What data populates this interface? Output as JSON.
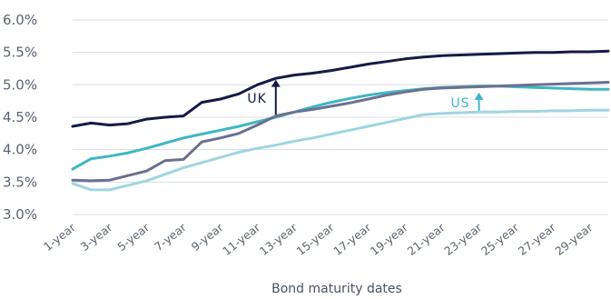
{
  "chart_data": {
    "type": "line",
    "xlabel": "Bond maturity dates",
    "ylabel": "",
    "title": "",
    "x_tick_labels": [
      "1-year",
      "3-year",
      "5-year",
      "7-year",
      "9-year",
      "11-year",
      "13-year",
      "15-year",
      "17-year",
      "19-year",
      "21-year",
      "23-year",
      "25-year",
      "27-year",
      "29-year"
    ],
    "y_tick_labels": [
      "3.0%",
      "3.5%",
      "4.0%",
      "4.5%",
      "5.0%",
      "5.5%",
      "6.0%"
    ],
    "ylim": [
      3.0,
      6.0
    ],
    "xlim": [
      1,
      30
    ],
    "grid": "horizontal",
    "series": [
      {
        "color": "#141b45",
        "x": [
          1,
          2,
          3,
          4,
          5,
          6,
          7,
          8,
          9,
          10,
          11,
          12,
          13,
          14,
          15,
          16,
          17,
          18,
          19,
          20,
          21,
          22,
          23,
          24,
          25,
          26,
          27,
          28,
          29,
          30
        ],
        "values": [
          4.36,
          4.41,
          4.38,
          4.4,
          4.47,
          4.5,
          4.52,
          4.73,
          4.78,
          4.86,
          5.0,
          5.1,
          5.15,
          5.18,
          5.22,
          5.27,
          5.32,
          5.36,
          5.4,
          5.43,
          5.45,
          5.46,
          5.47,
          5.48,
          5.49,
          5.5,
          5.5,
          5.51,
          5.51,
          5.52
        ]
      },
      {
        "color": "#3fb6c3",
        "x": [
          1,
          2,
          3,
          4,
          5,
          6,
          7,
          8,
          9,
          10,
          11,
          12,
          13,
          14,
          15,
          16,
          17,
          18,
          19,
          20,
          21,
          22,
          23,
          24,
          25,
          26,
          27,
          28,
          29,
          30
        ],
        "values": [
          3.7,
          3.86,
          3.9,
          3.95,
          4.02,
          4.1,
          4.18,
          4.24,
          4.3,
          4.36,
          4.43,
          4.5,
          4.58,
          4.66,
          4.73,
          4.79,
          4.84,
          4.88,
          4.91,
          4.94,
          4.96,
          4.97,
          4.98,
          4.98,
          4.97,
          4.96,
          4.95,
          4.94,
          4.93,
          4.93
        ]
      },
      {
        "color": "#6b7090",
        "x": [
          1,
          2,
          3,
          4,
          5,
          6,
          7,
          8,
          9,
          10,
          11,
          12,
          13,
          14,
          15,
          16,
          17,
          18,
          19,
          20,
          21,
          22,
          23,
          24,
          25,
          26,
          27,
          28,
          29,
          30
        ],
        "values": [
          3.53,
          3.52,
          3.53,
          3.6,
          3.67,
          3.83,
          3.85,
          4.12,
          4.18,
          4.25,
          4.38,
          4.52,
          4.58,
          4.62,
          4.67,
          4.72,
          4.78,
          4.84,
          4.89,
          4.93,
          4.95,
          4.96,
          4.97,
          4.98,
          4.99,
          5.0,
          5.01,
          5.02,
          5.03,
          5.04
        ]
      },
      {
        "color": "#9fd5e0",
        "x": [
          1,
          2,
          3,
          4,
          5,
          6,
          7,
          8,
          9,
          10,
          11,
          12,
          13,
          14,
          15,
          16,
          17,
          18,
          19,
          20,
          21,
          22,
          23,
          24,
          25,
          26,
          27,
          28,
          29,
          30
        ],
        "values": [
          3.48,
          3.38,
          3.38,
          3.45,
          3.52,
          3.62,
          3.72,
          3.8,
          3.88,
          3.96,
          4.02,
          4.07,
          4.13,
          4.18,
          4.24,
          4.3,
          4.36,
          4.42,
          4.48,
          4.54,
          4.56,
          4.57,
          4.58,
          4.58,
          4.59,
          4.59,
          4.6,
          4.6,
          4.61,
          4.61
        ]
      }
    ],
    "annotations": [
      {
        "text": "UK",
        "color": "#141b45",
        "x": 12,
        "arrow_from": 4.54,
        "arrow_to": 5.08
      },
      {
        "text": "US",
        "color": "#3fb6c3",
        "x": 23,
        "arrow_from": 4.6,
        "arrow_to": 4.88
      }
    ]
  }
}
